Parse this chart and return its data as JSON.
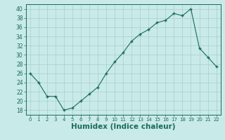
{
  "x": [
    0,
    1,
    2,
    3,
    4,
    5,
    6,
    7,
    8,
    9,
    10,
    11,
    12,
    13,
    14,
    15,
    16,
    17,
    18,
    19,
    20,
    21,
    22
  ],
  "y": [
    26,
    24,
    21,
    21,
    18,
    18.5,
    20,
    21.5,
    23,
    26,
    28.5,
    30.5,
    33,
    34.5,
    35.5,
    37,
    37.5,
    39,
    38.5,
    40,
    31.5,
    29.5,
    27.5
  ],
  "xlabel": "Humidex (Indice chaleur)",
  "xlim": [
    -0.5,
    22.5
  ],
  "ylim": [
    17,
    41
  ],
  "yticks": [
    18,
    20,
    22,
    24,
    26,
    28,
    30,
    32,
    34,
    36,
    38,
    40
  ],
  "xticks": [
    0,
    1,
    2,
    3,
    4,
    5,
    6,
    7,
    8,
    9,
    10,
    11,
    12,
    13,
    14,
    15,
    16,
    17,
    18,
    19,
    20,
    21,
    22
  ],
  "line_color": "#1a6b5a",
  "marker": "+",
  "marker_size": 3.5,
  "marker_linewidth": 1.0,
  "line_width": 0.8,
  "bg_color": "#c8eae8",
  "grid_color": "#aaccca",
  "xlabel_fontsize": 7.5,
  "xlabel_fontweight": "bold",
  "tick_fontsize": 5.0,
  "ytick_fontsize": 5.5
}
